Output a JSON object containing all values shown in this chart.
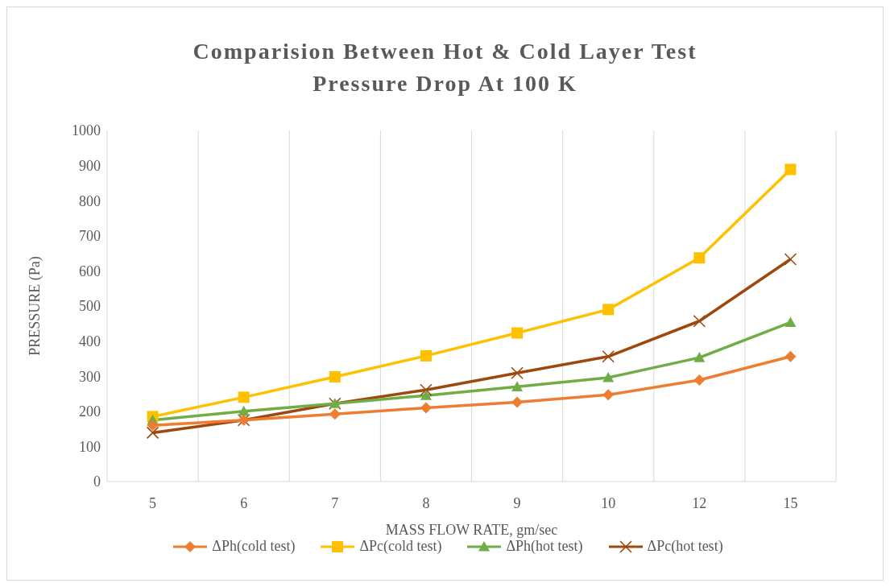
{
  "chart_data": {
    "type": "line",
    "title": "Comparision Between Hot & Cold Layer Test\nPressure Drop At 100 K",
    "xlabel": "MASS FLOW RATE, gm/sec",
    "ylabel": "PRESSURE (Pa)",
    "categories": [
      "5",
      "6",
      "7",
      "8",
      "9",
      "10",
      "12",
      "15"
    ],
    "series": [
      {
        "name": "ΔPh(cold test)",
        "color": "#ed7d31",
        "marker": "diamond",
        "values": [
          160,
          175,
          192,
          210,
          226,
          247,
          289,
          356
        ]
      },
      {
        "name": "ΔPc(cold test)",
        "color": "#ffc000",
        "marker": "square",
        "values": [
          185,
          240,
          298,
          358,
          423,
          490,
          637,
          889
        ]
      },
      {
        "name": "ΔPh(hot test)",
        "color": "#70ad47",
        "marker": "triangle",
        "values": [
          175,
          200,
          222,
          245,
          270,
          296,
          353,
          453
        ]
      },
      {
        "name": "ΔPc(hot test)",
        "color": "#9e480e",
        "marker": "cross",
        "values": [
          139,
          175,
          222,
          261,
          309,
          356,
          457,
          633
        ]
      }
    ],
    "ylim": [
      0,
      1000
    ],
    "yticks": [
      0,
      100,
      200,
      300,
      400,
      500,
      600,
      700,
      800,
      900,
      1000
    ],
    "grid": "x",
    "legend": "bottom",
    "line_style": "solid"
  }
}
